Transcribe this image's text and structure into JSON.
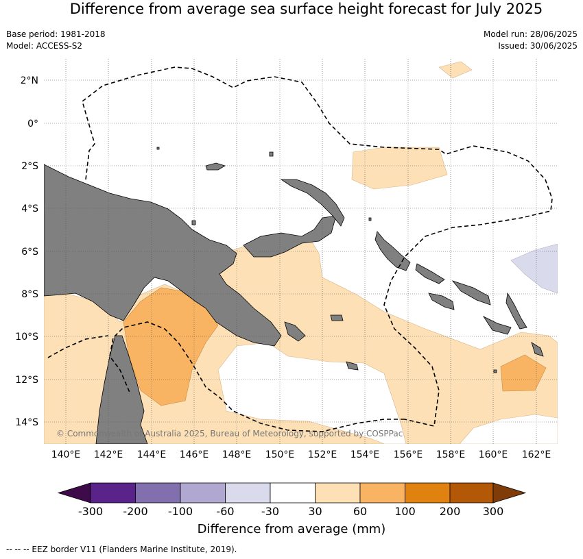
{
  "title": "Difference from average sea surface height forecast for July 2025",
  "base_period": "Base period: 1981-2018",
  "model": "Model: ACCESS-S2",
  "model_run": "Model run: 28/06/2025",
  "issued": "Issued: 30/06/2025",
  "copyright": "© Commonwealth of Australia 2025, Bureau of Meteorology, supported by COSPPac",
  "lat_labels": [
    "2°N",
    "0°",
    "2°S",
    "4°S",
    "6°S",
    "8°S",
    "10°S",
    "12°S",
    "14°S"
  ],
  "lon_labels": [
    "140°E",
    "142°E",
    "144°E",
    "146°E",
    "148°E",
    "150°E",
    "152°E",
    "154°E",
    "156°E",
    "158°E",
    "160°E",
    "162°E"
  ],
  "colorbar": {
    "title": "Difference from average (mm)",
    "tick_labels": [
      "-300",
      "-200",
      "-100",
      "-60",
      "-30",
      "30",
      "60",
      "100",
      "200",
      "300"
    ],
    "colors": [
      "#3f0a4a",
      "#5a2389",
      "#8170ad",
      "#b0a8d1",
      "#d9daeb",
      "#ffffff",
      "#fde0b5",
      "#f8b462",
      "#e0820f",
      "#b35806",
      "#7f3b08"
    ]
  },
  "footnote": "--  --  -- EEZ border V11 (Flanders Marine Institute, 2019).",
  "colors": {
    "land": "#808080",
    "anomaly_30_60": "#fde0b5",
    "anomaly_60_100": "#f8b462",
    "anomaly_minus60_minus30": "#d9daeb"
  }
}
